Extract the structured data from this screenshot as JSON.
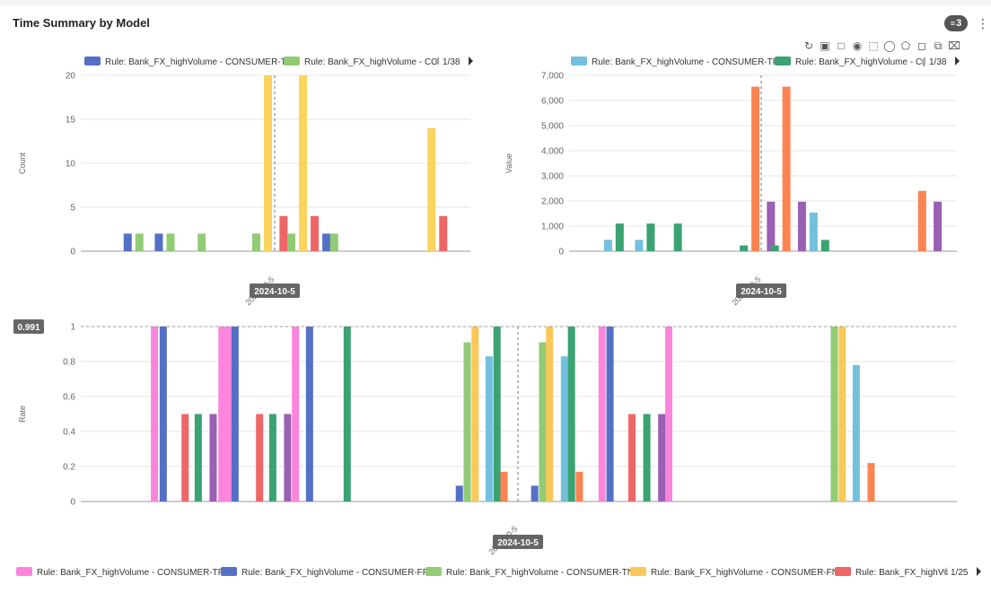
{
  "header": {
    "title": "Time Summary by Model",
    "filter_count": "3",
    "menu_icon": "kebab-menu-icon"
  },
  "toolbox": {
    "icons": [
      "refresh-icon",
      "crop-icon",
      "crop-alt-icon",
      "eye-icon",
      "zoom-area-icon",
      "lasso-icon",
      "polygon-select-icon",
      "rect-select-icon",
      "copy-icon",
      "restore-icon"
    ]
  },
  "colors": {
    "tpr": "#fc84dc",
    "fpr": "#5470c6",
    "tnr": "#91cc75",
    "fnr": "#fac858",
    "red": "#ee6666",
    "green": "#3ba272",
    "purple": "#9a60b4",
    "lightblue": "#73c0de",
    "orange": "#fc8452"
  },
  "chart_data": [
    {
      "type": "bar",
      "ylabel": "Count",
      "ylim": [
        0,
        20
      ],
      "yticks": [
        "0",
        "5",
        "10",
        "15",
        "20"
      ],
      "xtick": "2024-10-5",
      "axis_pointer_label": "2024-10-5",
      "legend": {
        "items": [
          "Rule: Bank_FX_highVolume - CONSUMER-TP",
          "Rule: Bank_FX_highVolume - CO"
        ],
        "item_colors": [
          "#5470c6",
          "#91cc75"
        ],
        "page": "1/38"
      },
      "bars": [
        {
          "slot": 0.11,
          "color": "#5470c6",
          "value": 2
        },
        {
          "slot": 0.14,
          "color": "#91cc75",
          "value": 2
        },
        {
          "slot": 0.19,
          "color": "#5470c6",
          "value": 2
        },
        {
          "slot": 0.22,
          "color": "#91cc75",
          "value": 2
        },
        {
          "slot": 0.3,
          "color": "#91cc75",
          "value": 2
        },
        {
          "slot": 0.44,
          "color": "#91cc75",
          "value": 2
        },
        {
          "slot": 0.47,
          "color": "#fad45c",
          "value": 20
        },
        {
          "slot": 0.51,
          "color": "#ee6666",
          "value": 4
        },
        {
          "slot": 0.53,
          "color": "#91cc75",
          "value": 2
        },
        {
          "slot": 0.56,
          "color": "#fad45c",
          "value": 20
        },
        {
          "slot": 0.59,
          "color": "#ee6666",
          "value": 4
        },
        {
          "slot": 0.62,
          "color": "#5470c6",
          "value": 2
        },
        {
          "slot": 0.64,
          "color": "#91cc75",
          "value": 2
        },
        {
          "slot": 0.89,
          "color": "#fad45c",
          "value": 14
        },
        {
          "slot": 0.92,
          "color": "#ee6666",
          "value": 4
        }
      ]
    },
    {
      "type": "bar",
      "ylabel": "Value",
      "ylim": [
        0,
        7000
      ],
      "yticks": [
        "0",
        "1,000",
        "2,000",
        "3,000",
        "4,000",
        "5,000",
        "6,000",
        "7,000"
      ],
      "xtick": "2024-10-5",
      "axis_pointer_label": "2024-10-5",
      "legend": {
        "items": [
          "Rule: Bank_FX_highVolume - CONSUMER-TPV",
          "Rule: Bank_FX_highVolume - C("
        ],
        "item_colors": [
          "#73c0de",
          "#3ba272"
        ],
        "page": "1/38"
      },
      "bars": [
        {
          "slot": 0.09,
          "color": "#73c0de",
          "value": 450
        },
        {
          "slot": 0.12,
          "color": "#3ba272",
          "value": 1100
        },
        {
          "slot": 0.17,
          "color": "#73c0de",
          "value": 450
        },
        {
          "slot": 0.2,
          "color": "#3ba272",
          "value": 1100
        },
        {
          "slot": 0.27,
          "color": "#3ba272",
          "value": 1100
        },
        {
          "slot": 0.44,
          "color": "#3ba272",
          "value": 230
        },
        {
          "slot": 0.47,
          "color": "#fc8452",
          "value": 6550
        },
        {
          "slot": 0.51,
          "color": "#9a60b4",
          "value": 1970
        },
        {
          "slot": 0.52,
          "color": "#3ba272",
          "value": 230
        },
        {
          "slot": 0.55,
          "color": "#fc8452",
          "value": 6550
        },
        {
          "slot": 0.59,
          "color": "#9a60b4",
          "value": 1970
        },
        {
          "slot": 0.62,
          "color": "#73c0de",
          "value": 1540
        },
        {
          "slot": 0.65,
          "color": "#3ba272",
          "value": 450
        },
        {
          "slot": 0.9,
          "color": "#fc8452",
          "value": 2400
        },
        {
          "slot": 0.94,
          "color": "#9a60b4",
          "value": 1970
        }
      ]
    },
    {
      "type": "bar",
      "ylabel": "Rate",
      "ylim": [
        0,
        1
      ],
      "yticks": [
        "0",
        "0.2",
        "0.4",
        "0.6",
        "0.8",
        "1"
      ],
      "xtick": "2024-10-5",
      "axis_pointer_label": "2024-10-5",
      "y_pointer_label": "0.991",
      "legend": {
        "items": [
          "Rule: Bank_FX_highVolume - CONSUMER-TPR",
          "Rule: Bank_FX_highVolume - CONSUMER-FPR",
          "Rule: Bank_FX_highVolume - CONSUMER-TNR",
          "Rule: Bank_FX_highVolume - CONSUMER-FNR",
          "Rule: Bank_FX_highVc"
        ],
        "item_colors": [
          "#fc84dc",
          "#5470c6",
          "#91cc75",
          "#fac858",
          "#ee6666"
        ],
        "page": "1/25"
      },
      "bars": [
        {
          "slot": 0.08,
          "color": "#fc84dc",
          "value": 1
        },
        {
          "slot": 0.09,
          "color": "#5470c6",
          "value": 1
        },
        {
          "slot": 0.115,
          "color": "#ee6666",
          "value": 0.5
        },
        {
          "slot": 0.13,
          "color": "#3ba272",
          "value": 0.5
        },
        {
          "slot": 0.147,
          "color": "#9a60b4",
          "value": 0.5
        },
        {
          "slot": 0.157,
          "color": "#fc84dc",
          "value": 1
        },
        {
          "slot": 0.165,
          "color": "#fc84dc",
          "value": 1
        },
        {
          "slot": 0.172,
          "color": "#5470c6",
          "value": 1
        },
        {
          "slot": 0.2,
          "color": "#ee6666",
          "value": 0.5
        },
        {
          "slot": 0.215,
          "color": "#3ba272",
          "value": 0.5
        },
        {
          "slot": 0.232,
          "color": "#9a60b4",
          "value": 0.5
        },
        {
          "slot": 0.241,
          "color": "#fc84dc",
          "value": 1
        },
        {
          "slot": 0.257,
          "color": "#5470c6",
          "value": 1
        },
        {
          "slot": 0.3,
          "color": "#3ba272",
          "value": 1
        },
        {
          "slot": 0.428,
          "color": "#5470c6",
          "value": 0.09
        },
        {
          "slot": 0.437,
          "color": "#91cc75",
          "value": 0.91
        },
        {
          "slot": 0.446,
          "color": "#fac858",
          "value": 1
        },
        {
          "slot": 0.462,
          "color": "#73c0de",
          "value": 0.83
        },
        {
          "slot": 0.471,
          "color": "#3ba272",
          "value": 1
        },
        {
          "slot": 0.479,
          "color": "#fc8452",
          "value": 0.17
        },
        {
          "slot": 0.514,
          "color": "#5470c6",
          "value": 0.09
        },
        {
          "slot": 0.523,
          "color": "#91cc75",
          "value": 0.91
        },
        {
          "slot": 0.531,
          "color": "#fac858",
          "value": 1
        },
        {
          "slot": 0.548,
          "color": "#73c0de",
          "value": 0.83
        },
        {
          "slot": 0.556,
          "color": "#3ba272",
          "value": 1
        },
        {
          "slot": 0.565,
          "color": "#fc8452",
          "value": 0.17
        },
        {
          "slot": 0.591,
          "color": "#fc84dc",
          "value": 1
        },
        {
          "slot": 0.6,
          "color": "#5470c6",
          "value": 1
        },
        {
          "slot": 0.625,
          "color": "#ee6666",
          "value": 0.5
        },
        {
          "slot": 0.642,
          "color": "#3ba272",
          "value": 0.5
        },
        {
          "slot": 0.659,
          "color": "#9a60b4",
          "value": 0.5
        },
        {
          "slot": 0.667,
          "color": "#fc84dc",
          "value": 1
        },
        {
          "slot": 0.856,
          "color": "#91cc75",
          "value": 1
        },
        {
          "slot": 0.865,
          "color": "#fac858",
          "value": 1
        },
        {
          "slot": 0.881,
          "color": "#73c0de",
          "value": 0.78
        },
        {
          "slot": 0.898,
          "color": "#fc8452",
          "value": 0.22
        }
      ]
    }
  ]
}
